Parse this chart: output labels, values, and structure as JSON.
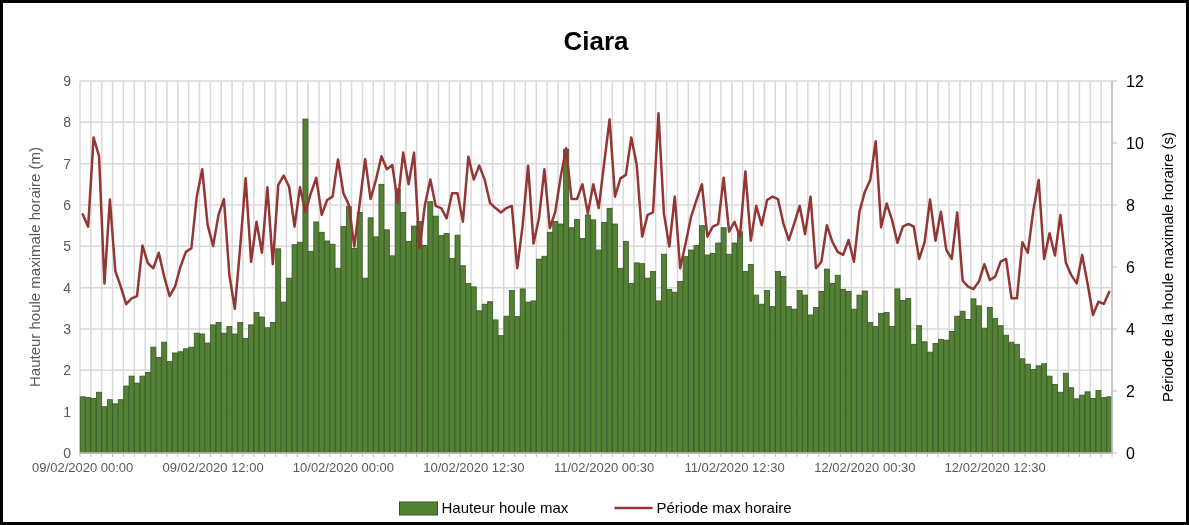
{
  "chart_data": {
    "type": "bar",
    "title": "Ciara",
    "ylabel": "Hauteur houle maximale horaire (m)",
    "y2label": "Période de la houle maximale horaire (s)",
    "categories": [
      "09/02/2020 00:00",
      null,
      null,
      null,
      null,
      null,
      null,
      null,
      null,
      null,
      null,
      null,
      null,
      null,
      null,
      null,
      null,
      null,
      null,
      null,
      null,
      null,
      null,
      null,
      "09/02/2020 12:00",
      null,
      null,
      null,
      null,
      null,
      null,
      null,
      null,
      null,
      null,
      null,
      null,
      null,
      null,
      null,
      null,
      null,
      null,
      null,
      null,
      null,
      null,
      null,
      "10/02/2020 00:00",
      null,
      null,
      null,
      null,
      null,
      null,
      null,
      null,
      null,
      null,
      null,
      null,
      null,
      null,
      null,
      null,
      null,
      null,
      null,
      null,
      null,
      null,
      null,
      "10/02/2020 12:30",
      null,
      null,
      null,
      null,
      null,
      null,
      null,
      null,
      null,
      null,
      null,
      null,
      null,
      null,
      null,
      null,
      null,
      null,
      null,
      null,
      null,
      null,
      null,
      "11/02/2020 00:30",
      null,
      null,
      null,
      null,
      null,
      null,
      null,
      null,
      null,
      null,
      null,
      null,
      null,
      null,
      null,
      null,
      null,
      null,
      null,
      null,
      null,
      null,
      null,
      "11/02/2020 12:30",
      null,
      null,
      null,
      null,
      null,
      null,
      null,
      null,
      null,
      null,
      null,
      null,
      null,
      null,
      null,
      null,
      null,
      null,
      null,
      null,
      null,
      null,
      null,
      "12/02/2020 00:30",
      null,
      null,
      null,
      null,
      null,
      null,
      null,
      null,
      null,
      null,
      null,
      null,
      null,
      null,
      null,
      null,
      null,
      null,
      null,
      null,
      null,
      null,
      null,
      "12/02/2020 12:30",
      null,
      null,
      null,
      null,
      null,
      null,
      null,
      null,
      null,
      null,
      null,
      null,
      null,
      null,
      null,
      null,
      null,
      null,
      null,
      null,
      null
    ],
    "series": [
      {
        "name": "Hauteur houle max",
        "color": "#548235",
        "values": [
          1.36,
          1.34,
          1.32,
          1.47,
          1.12,
          1.29,
          1.19,
          1.29,
          1.62,
          1.86,
          1.69,
          1.86,
          1.95,
          2.56,
          2.31,
          2.68,
          2.21,
          2.42,
          2.45,
          2.52,
          2.56,
          2.9,
          2.88,
          2.66,
          3.1,
          3.16,
          2.9,
          3.06,
          2.88,
          3.16,
          2.77,
          3.1,
          3.4,
          3.29,
          3.03,
          3.16,
          4.94,
          3.65,
          4.23,
          5.04,
          5.1,
          8.08,
          4.88,
          5.59,
          5.34,
          5.13,
          5.05,
          4.47,
          5.48,
          5.96,
          4.95,
          5.82,
          4.23,
          5.69,
          5.23,
          6.5,
          5.4,
          4.77,
          6.39,
          5.82,
          5.12,
          5.49,
          5.6,
          5.02,
          6.08,
          5.73,
          5.26,
          5.31,
          4.71,
          5.27,
          4.53,
          4.1,
          4.02,
          3.44,
          3.6,
          3.66,
          3.22,
          2.84,
          3.31,
          3.93,
          3.3,
          3.97,
          3.65,
          3.68,
          4.69,
          4.76,
          5.34,
          5.6,
          5.54,
          7.35,
          5.45,
          5.65,
          5.19,
          5.76,
          5.64,
          4.91,
          5.58,
          5.92,
          5.54,
          4.47,
          5.12,
          4.1,
          4.6,
          4.58,
          4.23,
          4.39,
          3.68,
          4.81,
          3.96,
          3.89,
          4.15,
          4.75,
          4.91,
          5.02,
          5.5,
          4.79,
          4.83,
          5.08,
          5.45,
          4.81,
          5.08,
          5.35,
          4.39,
          4.56,
          3.82,
          3.6,
          3.93,
          3.54,
          4.39,
          4.27,
          3.54,
          3.48,
          3.93,
          3.82,
          3.34,
          3.52,
          3.91,
          4.45,
          4.1,
          4.3,
          3.96,
          3.91,
          3.48,
          3.82,
          3.92,
          3.16,
          3.06,
          3.38,
          3.4,
          3.06,
          3.97,
          3.69,
          3.74,
          2.63,
          3.08,
          2.69,
          2.44,
          2.65,
          2.75,
          2.73,
          2.94,
          3.31,
          3.43,
          3.23,
          3.73,
          3.56,
          3.02,
          3.52,
          3.25,
          3.08,
          2.85,
          2.68,
          2.63,
          2.28,
          2.15,
          2.02,
          2.11,
          2.16,
          1.86,
          1.66,
          1.47,
          1.93,
          1.58,
          1.31,
          1.4,
          1.48,
          1.32,
          1.51,
          1.34,
          1.36
        ]
      },
      {
        "name": "Période max horaire",
        "type": "line",
        "axis": "y2",
        "color": "#943634",
        "values": [
          7.7,
          7.3,
          10.18,
          9.58,
          5.47,
          8.18,
          5.87,
          5.37,
          4.8,
          4.99,
          5.06,
          6.69,
          6.12,
          5.96,
          6.46,
          5.69,
          5.06,
          5.37,
          6.01,
          6.49,
          6.6,
          8.27,
          9.15,
          7.35,
          6.68,
          7.68,
          8.19,
          5.74,
          4.65,
          6.66,
          8.86,
          6.17,
          7.46,
          6.46,
          8.57,
          6.09,
          8.65,
          8.95,
          8.59,
          7.3,
          8.57,
          7.78,
          8.38,
          8.88,
          7.68,
          8.16,
          8.27,
          9.47,
          8.38,
          8.0,
          6.66,
          8.06,
          9.48,
          8.19,
          8.82,
          9.57,
          9.15,
          9.29,
          8.08,
          9.69,
          8.67,
          9.69,
          6.6,
          8.0,
          8.82,
          7.97,
          7.9,
          7.57,
          8.38,
          8.38,
          7.46,
          9.56,
          8.82,
          9.27,
          8.82,
          8.06,
          7.9,
          7.76,
          7.9,
          7.97,
          5.96,
          7.35,
          9.27,
          6.76,
          7.57,
          9.15,
          7.25,
          7.78,
          8.91,
          9.83,
          8.19,
          8.19,
          8.67,
          7.73,
          8.67,
          7.9,
          9.34,
          10.76,
          8.27,
          8.86,
          8.97,
          10.18,
          9.29,
          6.98,
          7.68,
          7.76,
          10.96,
          7.73,
          6.66,
          8.27,
          5.96,
          6.76,
          7.62,
          8.16,
          8.67,
          6.98,
          7.3,
          7.38,
          8.88,
          7.14,
          7.46,
          6.98,
          9.08,
          6.85,
          7.97,
          7.35,
          8.16,
          8.27,
          8.19,
          7.41,
          6.87,
          7.41,
          7.97,
          7.06,
          8.27,
          5.96,
          6.17,
          7.35,
          6.82,
          6.49,
          6.39,
          6.87,
          6.17,
          7.78,
          8.43,
          8.81,
          10.06,
          7.28,
          8.05,
          7.52,
          6.78,
          7.3,
          7.39,
          7.3,
          6.26,
          6.8,
          8.18,
          6.85,
          7.78,
          6.55,
          6.26,
          7.76,
          5.56,
          5.37,
          5.29,
          5.53,
          6.09,
          5.58,
          5.69,
          6.17,
          6.26,
          4.99,
          4.99,
          6.8,
          6.46,
          7.81,
          8.81,
          6.26,
          7.09,
          6.37,
          7.68,
          6.14,
          5.74,
          5.47,
          6.39,
          5.47,
          4.45,
          4.88,
          4.81,
          5.2
        ]
      }
    ],
    "ylim": [
      0,
      9
    ],
    "yticks": [
      0,
      1,
      2,
      3,
      4,
      5,
      6,
      7,
      8,
      9
    ],
    "y2lim": [
      0,
      12
    ],
    "y2ticks": [
      0,
      2,
      4,
      6,
      8,
      10,
      12
    ],
    "grid": true,
    "legend": "bottom",
    "line_style": "solid",
    "marker": "none"
  }
}
